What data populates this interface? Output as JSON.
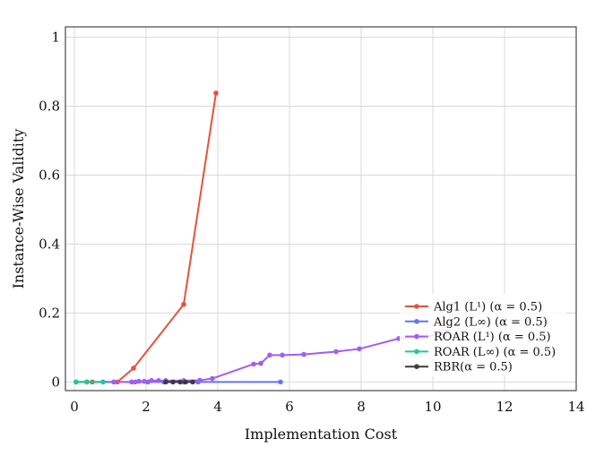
{
  "chart_data": {
    "type": "line",
    "xlabel": "Implementation Cost",
    "ylabel": "Instance-Wise Validity",
    "xlim": [
      -0.25,
      14
    ],
    "ylim": [
      -0.025,
      1.03
    ],
    "xticks": [
      "0",
      "2",
      "4",
      "6",
      "8",
      "10",
      "12",
      "14"
    ],
    "yticks": [
      "0",
      "0.2",
      "0.4",
      "0.6",
      "0.8",
      "1"
    ],
    "grid": true,
    "legend_position": "bottom-right",
    "series": [
      {
        "name": "Alg1 (L¹) (α = 0.5)",
        "color": "#e5533c",
        "x": [
          0.05,
          0.35,
          0.5,
          1.2,
          1.65,
          3.05,
          3.95
        ],
        "y": [
          0,
          0,
          0,
          0,
          0.04,
          0.225,
          0.838
        ]
      },
      {
        "name": "Alg2 (L∞) (α = 0.5)",
        "color": "#6174f5",
        "x": [
          0.05,
          0.35,
          0.8,
          1.1,
          1.6,
          2.05,
          2.5,
          3.05,
          3.45,
          5.75
        ],
        "y": [
          0,
          0,
          0,
          0,
          0,
          0,
          0,
          0,
          0,
          0
        ]
      },
      {
        "name": "ROAR (L¹) (α = 0.5)",
        "color": "#a25ef0",
        "x": [
          1.1,
          1.6,
          1.7,
          1.8,
          1.95,
          2.15,
          2.35,
          2.55,
          3.05,
          3.5,
          3.85,
          5.0,
          5.2,
          5.45,
          5.8,
          6.4,
          7.3,
          7.95,
          9.05,
          9.7,
          10.3,
          10.4
        ],
        "y": [
          0,
          0,
          0,
          0.002,
          0.002,
          0.004,
          0.004,
          0.004,
          0.004,
          0.005,
          0.01,
          0.052,
          0.054,
          0.078,
          0.078,
          0.08,
          0.088,
          0.096,
          0.126,
          0.13,
          0.142,
          0.146
        ]
      },
      {
        "name": "ROAR (L∞) (α = 0.5)",
        "color": "#1dc99a",
        "x": [
          0.05,
          0.35,
          0.8
        ],
        "y": [
          0,
          0,
          0
        ]
      },
      {
        "name": "RBR(α = 0.5)",
        "color": "#3b3b3b",
        "x": [
          2.55,
          2.75,
          2.95,
          3.1,
          3.3
        ],
        "y": [
          0,
          0,
          0,
          0,
          0
        ]
      }
    ]
  }
}
